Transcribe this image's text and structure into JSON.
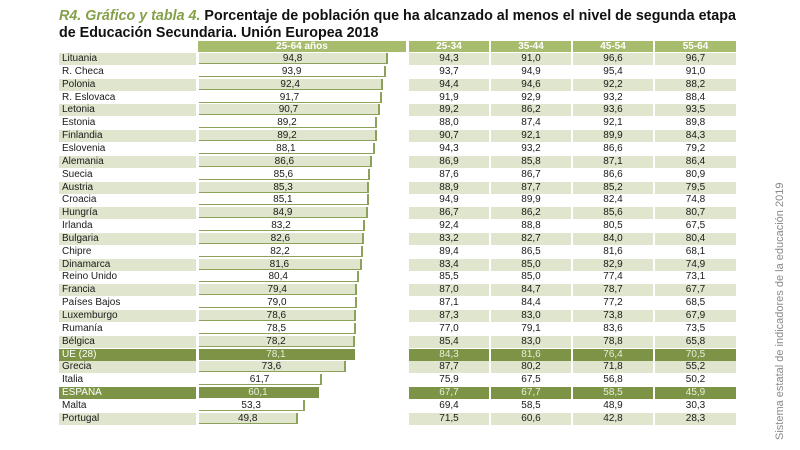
{
  "title": {
    "lead": "R4. Gráfico y tabla 4.",
    "text": "Porcentaje de población que ha alcanzado al menos el nivel de segunda etapa de Educación Secundaria. Unión Europea 2018"
  },
  "source_note": "Sistema estatal de indicadores de la educación 2019",
  "colors": {
    "header": "#a8bc6e",
    "highlight": "#7d9446",
    "alt_row": "#dfe6cd",
    "title_lead": "#84a14a"
  },
  "chart_data": {
    "type": "bar",
    "title": "Porcentaje de población que ha alcanzado al menos el nivel de segunda etapa de Educación Secundaria. Unión Europea 2018",
    "orientation": "horizontal",
    "series_label": "25-64 años",
    "xlim": [
      0,
      100
    ],
    "categories": [
      "Lituania",
      "R. Checa",
      "Polonia",
      "R. Eslovaca",
      "Letonia",
      "Estonia",
      "Finlandia",
      "Eslovenia",
      "Alemania",
      "Suecia",
      "Austria",
      "Croacia",
      "Hungría",
      "Irlanda",
      "Bulgaria",
      "Chipre",
      "Dinamarca",
      "Reino Unido",
      "Francia",
      "Países Bajos",
      "Luxemburgo",
      "Rumanía",
      "Bélgica",
      "UE (28)",
      "Grecia",
      "Italia",
      "ESPAÑA",
      "Malta",
      "Portugal"
    ],
    "values": [
      94.8,
      93.9,
      92.4,
      91.7,
      90.7,
      89.2,
      89.2,
      88.1,
      86.6,
      85.6,
      85.3,
      85.1,
      84.9,
      83.2,
      82.6,
      82.2,
      81.6,
      80.4,
      79.4,
      79.0,
      78.6,
      78.5,
      78.2,
      78.1,
      73.6,
      61.7,
      60.1,
      53.3,
      49.8
    ],
    "value_labels": [
      "94,8",
      "93,9",
      "92,4",
      "91,7",
      "90,7",
      "89,2",
      "89,2",
      "88,1",
      "86,6",
      "85,6",
      "85,3",
      "85,1",
      "84,9",
      "83,2",
      "82,6",
      "82,2",
      "81,6",
      "80,4",
      "79,4",
      "79,0",
      "78,6",
      "78,5",
      "78,2",
      "78,1",
      "73,6",
      "61,7",
      "60,1",
      "53,3",
      "49,8"
    ],
    "highlighted": [
      "UE (28)",
      "ESPAÑA"
    ]
  },
  "table": {
    "columns": [
      "25-34",
      "35-44",
      "45-54",
      "55-64"
    ],
    "rows": [
      [
        "94,3",
        "91,0",
        "96,6",
        "96,7"
      ],
      [
        "93,7",
        "94,9",
        "95,4",
        "91,0"
      ],
      [
        "94,4",
        "94,6",
        "92,2",
        "88,2"
      ],
      [
        "91,9",
        "92,9",
        "93,2",
        "88,4"
      ],
      [
        "89,2",
        "86,2",
        "93,6",
        "93,5"
      ],
      [
        "88,0",
        "87,4",
        "92,1",
        "89,8"
      ],
      [
        "90,7",
        "92,1",
        "89,9",
        "84,3"
      ],
      [
        "94,3",
        "93,2",
        "86,6",
        "79,2"
      ],
      [
        "86,9",
        "85,8",
        "87,1",
        "86,4"
      ],
      [
        "87,6",
        "86,7",
        "86,6",
        "80,9"
      ],
      [
        "88,9",
        "87,7",
        "85,2",
        "79,5"
      ],
      [
        "94,9",
        "89,9",
        "82,4",
        "74,8"
      ],
      [
        "86,7",
        "86,2",
        "85,6",
        "80,7"
      ],
      [
        "92,4",
        "88,8",
        "80,5",
        "67,5"
      ],
      [
        "83,2",
        "82,7",
        "84,0",
        "80,4"
      ],
      [
        "89,4",
        "86,5",
        "81,6",
        "68,1"
      ],
      [
        "83,4",
        "85,0",
        "82,9",
        "74,9"
      ],
      [
        "85,5",
        "85,0",
        "77,4",
        "73,1"
      ],
      [
        "87,0",
        "84,7",
        "78,7",
        "67,7"
      ],
      [
        "87,1",
        "84,4",
        "77,2",
        "68,5"
      ],
      [
        "87,3",
        "83,0",
        "73,8",
        "67,9"
      ],
      [
        "77,0",
        "79,1",
        "83,6",
        "73,5"
      ],
      [
        "85,4",
        "83,0",
        "78,8",
        "65,8"
      ],
      [
        "84,3",
        "81,6",
        "76,4",
        "70,5"
      ],
      [
        "87,7",
        "80,2",
        "71,8",
        "55,2"
      ],
      [
        "75,9",
        "67,5",
        "56,8",
        "50,2"
      ],
      [
        "67,7",
        "67,7",
        "58,5",
        "45,9"
      ],
      [
        "69,4",
        "58,5",
        "48,9",
        "30,3"
      ],
      [
        "71,5",
        "60,6",
        "42,8",
        "28,3"
      ]
    ]
  }
}
